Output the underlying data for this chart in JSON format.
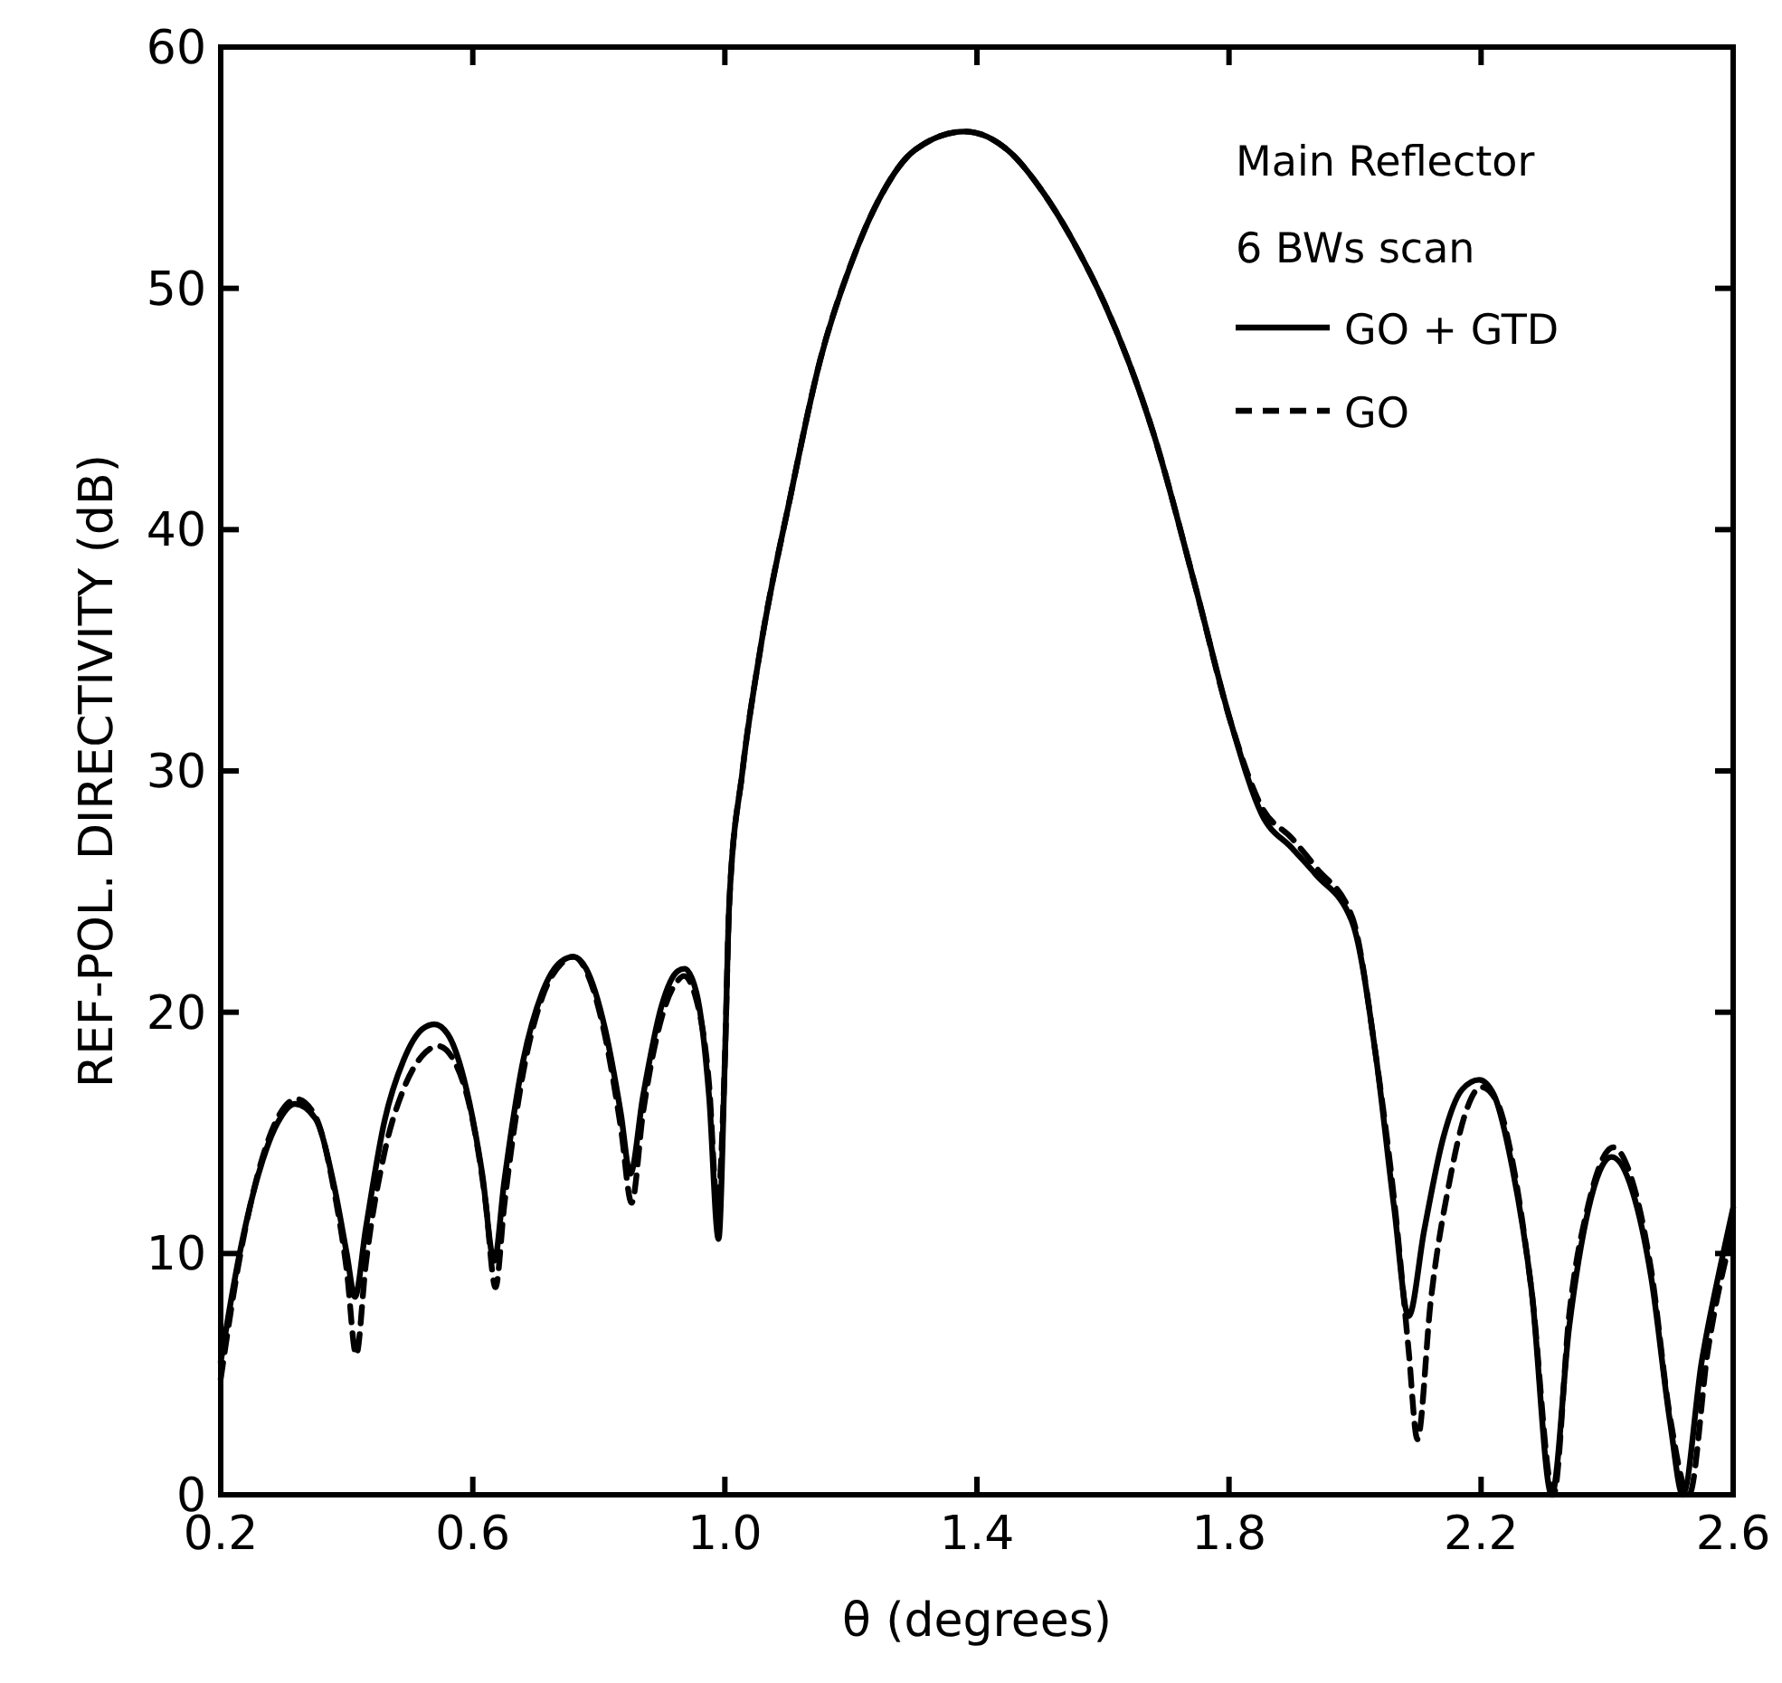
{
  "chart_data": {
    "type": "line",
    "xlabel": "θ (degrees)",
    "ylabel": "REF-POL. DIRECTIVITY (dB)",
    "annotations": [
      "Main Reflector",
      "6 BWs scan"
    ],
    "xlim": [
      0.2,
      2.6
    ],
    "ylim": [
      0,
      60
    ],
    "xticks": [
      0.2,
      0.6,
      {
        "value": 1,
        "label": "1.0"
      },
      1.4,
      1.8,
      2.2,
      2.6
    ],
    "yticks": [
      0,
      10,
      20,
      30,
      40,
      50,
      60
    ],
    "grid": false,
    "legend": "top right",
    "marker": "none",
    "series": [
      {
        "name": "GO + GTD",
        "color": "#000000",
        "line_style": "solid",
        "x": [
          0.2,
          0.23,
          0.26,
          0.29,
          0.318,
          0.35,
          0.38,
          0.4,
          0.413,
          0.43,
          0.46,
          0.49,
          0.52,
          0.539,
          0.56,
          0.59,
          0.615,
          0.634,
          0.65,
          0.68,
          0.71,
          0.74,
          0.76,
          0.78,
          0.81,
          0.835,
          0.85,
          0.87,
          0.9,
          0.925,
          0.936,
          0.955,
          0.975,
          0.99,
          1.0,
          1.007,
          1.028,
          1.056,
          1.105,
          1.151,
          1.2,
          1.249,
          1.3,
          1.381,
          1.45,
          1.507,
          1.56,
          1.602,
          1.68,
          1.746,
          1.803,
          1.852,
          1.9,
          1.938,
          1.996,
          2.033,
          2.062,
          2.085,
          2.11,
          2.14,
          2.17,
          2.197,
          2.22,
          2.25,
          2.28,
          2.312,
          2.34,
          2.37,
          2.407,
          2.44,
          2.47,
          2.5,
          2.52,
          2.55,
          2.58,
          2.6
        ],
        "values": [
          5.5,
          10,
          13.3,
          15.4,
          16.2,
          15.6,
          12.8,
          10,
          8.2,
          11,
          15.5,
          18,
          19.3,
          19.5,
          19.1,
          16.8,
          13.3,
          9.7,
          13,
          18,
          20.8,
          22.1,
          22.3,
          21.8,
          19.3,
          15.8,
          13.3,
          16.5,
          20.3,
          21.7,
          21.8,
          20.8,
          16.5,
          10.6,
          18,
          24.5,
          30,
          35,
          41.5,
          47,
          51,
          53.9,
          55.7,
          56.5,
          55.7,
          53.9,
          51.6,
          49.4,
          44,
          37.7,
          32,
          28.2,
          26.8,
          25.7,
          23.7,
          18.2,
          11.9,
          7.4,
          11,
          14.8,
          16.8,
          17.2,
          16.6,
          13.5,
          8.5,
          0,
          7,
          11.8,
          14,
          12.6,
          9,
          3,
          0,
          5.5,
          9.5,
          11.9
        ]
      },
      {
        "name": "GO",
        "color": "#000000",
        "line_style": "dashed",
        "x": [
          0.2,
          0.23,
          0.26,
          0.29,
          0.32,
          0.35,
          0.38,
          0.4,
          0.415,
          0.43,
          0.46,
          0.49,
          0.52,
          0.545,
          0.57,
          0.6,
          0.62,
          0.636,
          0.65,
          0.68,
          0.71,
          0.74,
          0.76,
          0.78,
          0.81,
          0.835,
          0.852,
          0.87,
          0.9,
          0.925,
          0.935,
          0.955,
          0.975,
          0.988,
          1.0,
          1.007,
          1.028,
          1.056,
          1.105,
          1.151,
          1.2,
          1.249,
          1.3,
          1.381,
          1.45,
          1.507,
          1.56,
          1.602,
          1.68,
          1.746,
          1.803,
          1.852,
          1.9,
          1.938,
          1.996,
          2.033,
          2.065,
          2.085,
          2.099,
          2.12,
          2.15,
          2.175,
          2.2,
          2.225,
          2.25,
          2.28,
          2.315,
          2.34,
          2.37,
          2.41,
          2.44,
          2.47,
          2.5,
          2.53,
          2.56,
          2.6
        ],
        "values": [
          4.8,
          9.8,
          13.4,
          15.6,
          16.4,
          15.7,
          12.6,
          9.3,
          5.8,
          9.5,
          14.2,
          16.8,
          18.2,
          18.6,
          18,
          15.5,
          12.2,
          8.6,
          12,
          17.5,
          20.6,
          22,
          22.3,
          21.7,
          19,
          15.2,
          12.1,
          15.8,
          19.8,
          21.3,
          21.5,
          20.5,
          17,
          12,
          18,
          24.5,
          30,
          35,
          41.5,
          47,
          51,
          53.9,
          55.7,
          56.5,
          55.7,
          53.9,
          51.6,
          49.4,
          44,
          37.7,
          32,
          28.5,
          27.2,
          26,
          23.9,
          18.2,
          11.5,
          6,
          2.3,
          8,
          13,
          15.8,
          16.9,
          16.3,
          13.8,
          8.5,
          0,
          7.5,
          12,
          14.4,
          13,
          9.3,
          3.2,
          0,
          6,
          11
        ]
      }
    ]
  }
}
